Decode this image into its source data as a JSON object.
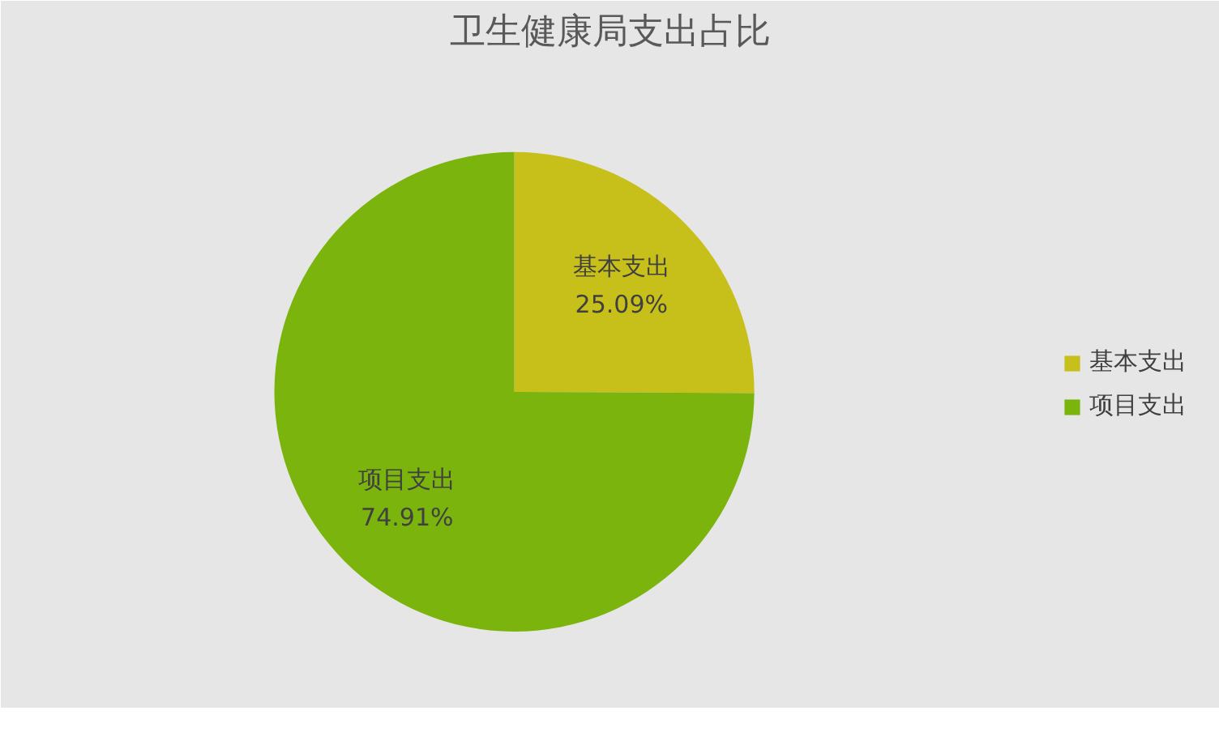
{
  "chart_data": {
    "type": "pie",
    "title": "卫生健康局支出占比",
    "categories": [
      "基本支出",
      "项目支出"
    ],
    "values": [
      25.09,
      74.91
    ],
    "colors": [
      "#c8c01a",
      "#7ab40c"
    ],
    "value_labels": [
      "25.09%",
      "74.91%"
    ],
    "legend": "right"
  }
}
